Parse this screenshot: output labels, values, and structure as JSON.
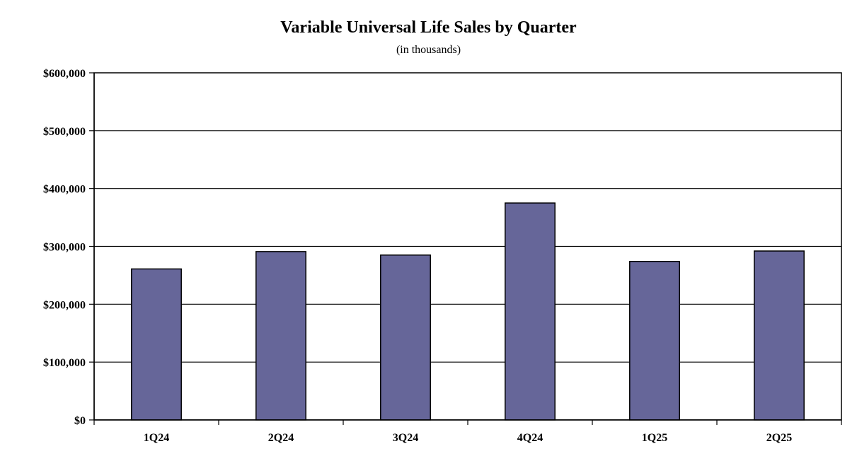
{
  "chart_data": {
    "type": "bar",
    "title": "Variable Universal Life Sales by Quarter",
    "subtitle": "(in thousands)",
    "xlabel": "",
    "ylabel": "",
    "categories": [
      "1Q24",
      "2Q24",
      "3Q24",
      "4Q24",
      "1Q25",
      "2Q25"
    ],
    "values": [
      261000,
      291000,
      285000,
      375000,
      274000,
      292000
    ],
    "ylim": [
      0,
      600000
    ],
    "yticks": [
      0,
      100000,
      200000,
      300000,
      400000,
      500000,
      600000
    ],
    "ytick_labels": [
      "$0",
      "$100,000",
      "$200,000",
      "$300,000",
      "$400,000",
      "$500,000",
      "$600,000"
    ],
    "grid": true,
    "legend": "none",
    "bar_color": "#666699",
    "bar_edge_color": "#000000"
  }
}
